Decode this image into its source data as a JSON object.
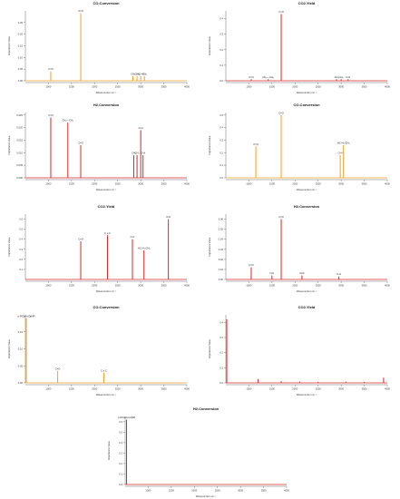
{
  "colors": {
    "red": "#d62728",
    "orange": "#f0a020",
    "axis": "#444444"
  },
  "chart_data": [
    {
      "type": "bar",
      "title": "CO.Conversion",
      "xlabel": "Wavenumber cm⁻¹",
      "ylabel": "Importance Value",
      "xlim": [
        500,
        4000
      ],
      "ylim": [
        0,
        0.3
      ],
      "xticks": [
        "1000",
        "1500",
        "2000",
        "2500",
        "3000",
        "3500",
        "4000"
      ],
      "yticks": [
        "0.00",
        "0.05",
        "0.10",
        "0.15",
        "0.20",
        "0.25"
      ],
      "peaks": [
        {
          "x": 1050,
          "y": 0.04,
          "label": "C=O",
          "color": "orange"
        },
        {
          "x": 1700,
          "y": 0.29,
          "label": "C=O",
          "color": "orange"
        },
        {
          "x": 2830,
          "y": 0.02,
          "label": "CH₂",
          "color": "orange"
        },
        {
          "x": 2920,
          "y": 0.02,
          "label": "CH₃",
          "color": "orange"
        },
        {
          "x": 3000,
          "y": 0.02,
          "label": "HC=O",
          "color": "orange"
        },
        {
          "x": 3080,
          "y": 0.02,
          "label": "-CH₃",
          "color": "orange"
        }
      ]
    },
    {
      "type": "bar",
      "title": "CO2.Yield",
      "xlabel": "Wavenumber cm⁻¹",
      "ylabel": "Importance Value",
      "xlim": [
        500,
        4000
      ],
      "ylim": [
        0,
        0.45
      ],
      "xticks": [
        "1000",
        "1500",
        "2000",
        "2500",
        "3000",
        "3500",
        "4000"
      ],
      "yticks": [
        "0.0",
        "0.1",
        "0.2",
        "0.3",
        "0.4"
      ],
      "peaks": [
        {
          "x": 1050,
          "y": 0.01,
          "label": "C=O",
          "color": "red"
        },
        {
          "x": 1420,
          "y": 0.01,
          "label": "CH₂—CH₃",
          "color": "red"
        },
        {
          "x": 1700,
          "y": 0.43,
          "label": "C=O",
          "color": "red"
        },
        {
          "x": 2900,
          "y": 0.01,
          "label": "CH₃",
          "color": "red"
        },
        {
          "x": 3000,
          "y": 0.01,
          "label": "CH₂",
          "color": "red"
        },
        {
          "x": 3150,
          "y": 0.01,
          "label": "O-H",
          "color": "red"
        }
      ]
    },
    {
      "type": "bar",
      "title": "H2.Conversion",
      "xlabel": "Wavenumber cm⁻¹",
      "ylabel": "Importance Value",
      "xlim": [
        500,
        4000
      ],
      "ylim": [
        0,
        0.026
      ],
      "xticks": [
        "1000",
        "1500",
        "2000",
        "2500",
        "3000",
        "3500",
        "4000"
      ],
      "yticks": [
        "0.000",
        "0.005",
        "0.010",
        "0.015",
        "0.020",
        "0.025"
      ],
      "peaks": [
        {
          "x": 1050,
          "y": 0.024,
          "label": "C=O",
          "color": "red"
        },
        {
          "x": 1420,
          "y": 0.022,
          "label": "CH₂—CH₃",
          "color": "red"
        },
        {
          "x": 1700,
          "y": 0.013,
          "label": "C=O",
          "color": "red"
        },
        {
          "x": 2850,
          "y": 0.009,
          "label": "CH₂",
          "color": "red"
        },
        {
          "x": 2920,
          "y": 0.009,
          "label": "CH₃",
          "color": "red"
        },
        {
          "x": 3000,
          "y": 0.019,
          "label": "O-H",
          "color": "red"
        },
        {
          "x": 3050,
          "y": 0.009,
          "label": "O-H",
          "color": "red"
        }
      ]
    },
    {
      "type": "bar",
      "title": "CO.Conversion",
      "xlabel": "Wavenumber cm⁻¹",
      "ylabel": "Importance Value",
      "xlim": [
        500,
        4000
      ],
      "ylim": [
        0,
        0.52
      ],
      "xticks": [
        "1000",
        "1500",
        "2000",
        "2500",
        "3000",
        "3500",
        "4000"
      ],
      "yticks": [
        "0.0",
        "0.1",
        "0.2",
        "0.3",
        "0.4",
        "0.5"
      ],
      "peaks": [
        {
          "x": 1150,
          "y": 0.25,
          "label": "C=O",
          "color": "orange"
        },
        {
          "x": 1700,
          "y": 0.5,
          "label": "C=O",
          "color": "orange"
        },
        {
          "x": 2980,
          "y": 0.18,
          "label": "O-H",
          "color": "orange"
        },
        {
          "x": 3050,
          "y": 0.26,
          "label": "HC-H₂-CH₃",
          "color": "orange"
        }
      ]
    },
    {
      "type": "bar",
      "title": "CO2.Yield",
      "xlabel": "Wavenumber cm⁻¹",
      "ylabel": "Importance Value",
      "xlim": [
        500,
        4000
      ],
      "ylim": [
        0,
        0.65
      ],
      "xticks": [
        "1000",
        "1500",
        "2000",
        "2500",
        "3000",
        "3500",
        "4000"
      ],
      "yticks": [
        "0.1",
        "0.2",
        "0.3",
        "0.4",
        "0.5",
        "0.6"
      ],
      "peaks": [
        {
          "x": 1700,
          "y": 0.38,
          "label": "C=O",
          "color": "red"
        },
        {
          "x": 2280,
          "y": 0.44,
          "label": "C ≡ C",
          "color": "red"
        },
        {
          "x": 2820,
          "y": 0.4,
          "label": "C-H",
          "color": "red"
        },
        {
          "x": 3070,
          "y": 0.29,
          "label": "HC-H₂-CH₃",
          "color": "red"
        },
        {
          "x": 3600,
          "y": 0.6,
          "label": "O-H",
          "color": "red"
        }
      ]
    },
    {
      "type": "bar",
      "title": "H2.Conversion",
      "xlabel": "Wavenumber cm⁻¹",
      "ylabel": "Importance Value",
      "xlim": [
        500,
        4000
      ],
      "ylim": [
        0,
        0.065
      ],
      "xticks": [
        "1000",
        "1500",
        "2000",
        "2500",
        "3000",
        "3500",
        "4000"
      ],
      "yticks": [
        "0.00",
        "0.01",
        "0.02",
        "0.03",
        "0.04",
        "0.05",
        "0.06"
      ],
      "peaks": [
        {
          "x": 1050,
          "y": 0.012,
          "label": "C=O",
          "color": "red"
        },
        {
          "x": 1500,
          "y": 0.004,
          "label": "N-H",
          "color": "red"
        },
        {
          "x": 1700,
          "y": 0.06,
          "label": "C=O",
          "color": "red"
        },
        {
          "x": 2150,
          "y": 0.004,
          "label": "C≡C",
          "color": "red"
        },
        {
          "x": 2950,
          "y": 0.003,
          "label": "C-H",
          "color": "red"
        }
      ]
    },
    {
      "type": "bar",
      "title": "CO.Conversion",
      "xlabel": "Wavenumber cm⁻¹",
      "ylabel": "Importance Value",
      "xlim": [
        500,
        4000
      ],
      "ylim": [
        0,
        0.2
      ],
      "xticks": [
        "1000",
        "1500",
        "2000",
        "2500",
        "3000",
        "3500",
        "4000"
      ],
      "yticks": [
        "0.00",
        "0.05",
        "0.10",
        "0.15"
      ],
      "peaks": [
        {
          "x": 520,
          "y": 0.19,
          "label": "p-RC≡H+C≡NR",
          "color": "orange"
        },
        {
          "x": 1200,
          "y": 0.035,
          "label": "C=O",
          "color": "orange"
        },
        {
          "x": 2200,
          "y": 0.03,
          "label": "C ≡ C",
          "color": "orange"
        }
      ]
    },
    {
      "type": "bar",
      "title": "CO2.Yield",
      "xlabel": "Wavenumber cm⁻¹",
      "ylabel": "Importance Value",
      "xlim": [
        500,
        4000
      ],
      "ylim": [
        0,
        0.45
      ],
      "xticks": [
        "1000",
        "1500",
        "2000",
        "2500",
        "3000",
        "3500",
        "4000"
      ],
      "yticks": [
        "0.0",
        "0.1",
        "0.2",
        "0.3",
        "0.4"
      ],
      "peaks": [
        {
          "x": 520,
          "y": 0.42,
          "label": "",
          "color": "red"
        },
        {
          "x": 1200,
          "y": 0.025,
          "label": "",
          "color": "red"
        },
        {
          "x": 1700,
          "y": 0.012,
          "label": "",
          "color": "red"
        },
        {
          "x": 2100,
          "y": 0.008,
          "label": "",
          "color": "red"
        },
        {
          "x": 2500,
          "y": 0.006,
          "label": "",
          "color": "red"
        },
        {
          "x": 3100,
          "y": 0.008,
          "label": "",
          "color": "red"
        },
        {
          "x": 3500,
          "y": 0.006,
          "label": "",
          "color": "red"
        },
        {
          "x": 3920,
          "y": 0.035,
          "label": "",
          "color": "red"
        }
      ]
    },
    {
      "type": "bar",
      "title": "H2.Conversion",
      "xlabel": "Wavenumber cm⁻¹",
      "ylabel": "Importance Value",
      "xlim": [
        500,
        4000
      ],
      "ylim": [
        0,
        0.65
      ],
      "xticks": [
        "1000",
        "1500",
        "2000",
        "2500",
        "3000",
        "3500",
        "4000"
      ],
      "yticks": [
        "0.0",
        "0.1",
        "0.2",
        "0.3",
        "0.4",
        "0.5",
        "0.6"
      ],
      "peaks": [
        {
          "x": 530,
          "y": 0.62,
          "label": "p-RC≡H+C≡NR",
          "color": "red"
        }
      ]
    }
  ]
}
